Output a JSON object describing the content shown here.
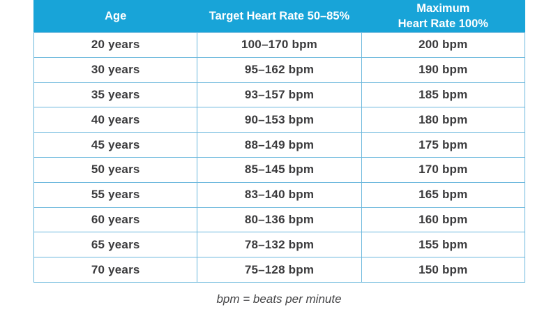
{
  "colors": {
    "header_bg": "#18a4d8",
    "border": "#6ab7dc",
    "header_text": "#ffffff",
    "cell_text": "#3b3b3d",
    "note_text": "#454547",
    "row_bg": "#ffffff"
  },
  "table": {
    "headers": [
      "Age",
      "Target Heart Rate 50–85%",
      "Maximum\nHeart Rate 100%"
    ],
    "rows": [
      {
        "age": "20 years",
        "target": "100–170 bpm",
        "max": "200 bpm"
      },
      {
        "age": "30 years",
        "target": "95–162 bpm",
        "max": "190 bpm"
      },
      {
        "age": "35 years",
        "target": "93–157 bpm",
        "max": "185 bpm"
      },
      {
        "age": "40 years",
        "target": "90–153 bpm",
        "max": "180 bpm"
      },
      {
        "age": "45 years",
        "target": "88–149 bpm",
        "max": "175 bpm"
      },
      {
        "age": "50 years",
        "target": "85–145 bpm",
        "max": "170 bpm"
      },
      {
        "age": "55 years",
        "target": "83–140 bpm",
        "max": "165 bpm"
      },
      {
        "age": "60 years",
        "target": "80–136 bpm",
        "max": "160 bpm"
      },
      {
        "age": "65 years",
        "target": "78–132 bpm",
        "max": "155 bpm"
      },
      {
        "age": "70 years",
        "target": "75–128 bpm",
        "max": "150 bpm"
      }
    ]
  },
  "note": "bpm = beats per minute",
  "chart_data": {
    "type": "table",
    "title": "",
    "columns": [
      "Age",
      "Target Heart Rate 50–85%",
      "Maximum Heart Rate 100%"
    ],
    "rows": [
      [
        "20 years",
        "100–170 bpm",
        "200 bpm"
      ],
      [
        "30 years",
        "95–162 bpm",
        "190 bpm"
      ],
      [
        "35 years",
        "93–157 bpm",
        "185 bpm"
      ],
      [
        "40 years",
        "90–153 bpm",
        "180 bpm"
      ],
      [
        "45 years",
        "88–149 bpm",
        "175 bpm"
      ],
      [
        "50 years",
        "85–145 bpm",
        "170 bpm"
      ],
      [
        "55 years",
        "83–140 bpm",
        "165 bpm"
      ],
      [
        "60 years",
        "80–136 bpm",
        "160 bpm"
      ],
      [
        "65 years",
        "78–132 bpm",
        "155 bpm"
      ],
      [
        "70 years",
        "75–128 bpm",
        "150 bpm"
      ]
    ],
    "footnote": "bpm = beats per minute"
  }
}
